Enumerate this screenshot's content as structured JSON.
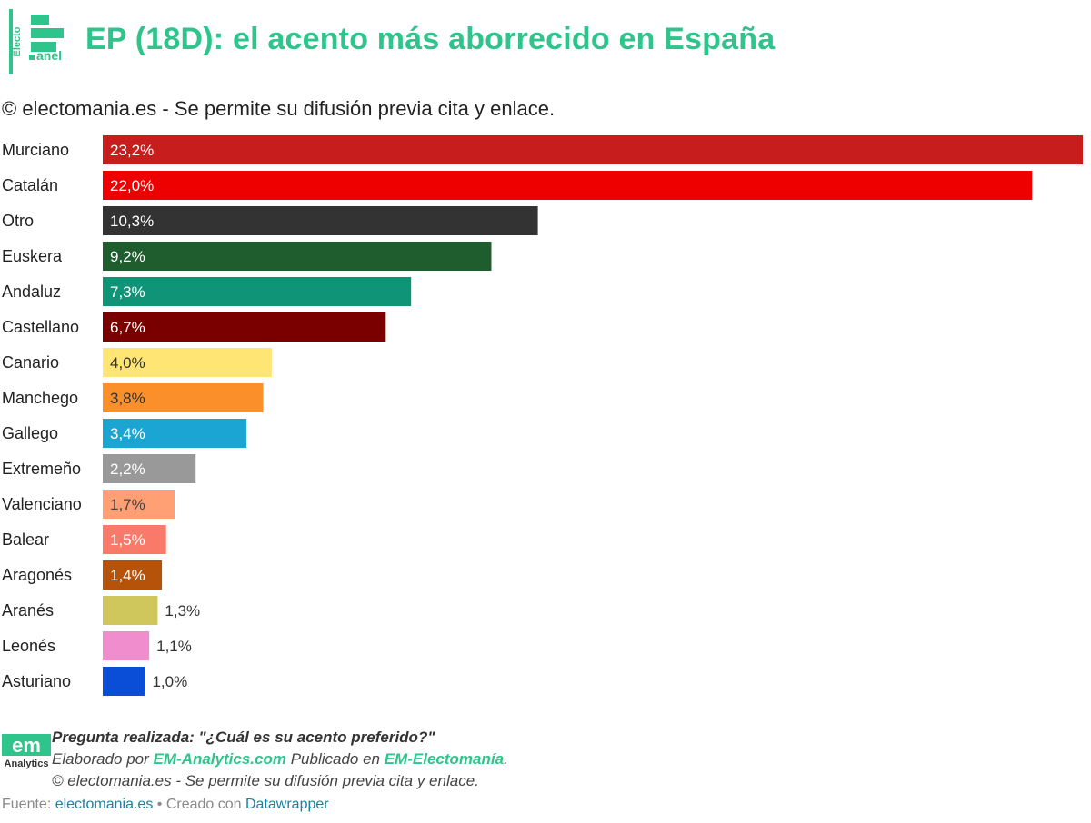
{
  "header": {
    "logo_text_top": "Electo",
    "logo_text_bottom": "anel",
    "title": "EP (18D): el acento más aborrecido en España"
  },
  "subtitle": "© electomania.es - Se permite su difusión previa cita y enlace.",
  "chart_data": {
    "type": "bar",
    "orientation": "horizontal",
    "title": "EP (18D): el acento más aborrecido en España",
    "xlim": [
      0,
      23.2
    ],
    "grid": false,
    "legend": "none",
    "categories": [
      "Murciano",
      "Catalán",
      "Otro",
      "Euskera",
      "Andaluz",
      "Castellano",
      "Canario",
      "Manchego",
      "Gallego",
      "Extremeño",
      "Valenciano",
      "Balear",
      "Aragonés",
      "Aranés",
      "Leonés",
      "Asturiano"
    ],
    "values": [
      23.2,
      22.0,
      10.3,
      9.2,
      7.3,
      6.7,
      4.0,
      3.8,
      3.4,
      2.2,
      1.7,
      1.5,
      1.4,
      1.3,
      1.1,
      1.0
    ],
    "value_labels": [
      "23,2%",
      "22,0%",
      "10,3%",
      "9,2%",
      "7,3%",
      "6,7%",
      "4,0%",
      "3,8%",
      "3,4%",
      "2,2%",
      "1,7%",
      "1,5%",
      "1,4%",
      "1,3%",
      "1,1%",
      "1,0%"
    ],
    "colors": [
      "#c71e1d",
      "#ee0000",
      "#333333",
      "#1f5c2e",
      "#0f9478",
      "#7a0000",
      "#ffe574",
      "#fb8f2a",
      "#1aa5d2",
      "#999999",
      "#ff9f73",
      "#fa7a6a",
      "#b45309",
      "#cfc75b",
      "#f08dcc",
      "#0a4dd6"
    ],
    "label_colors": [
      "#ffffff",
      "#ffffff",
      "#ffffff",
      "#ffffff",
      "#ffffff",
      "#ffffff",
      "#333333",
      "#333333",
      "#ffffff",
      "#ffffff",
      "#444444",
      "#ffffff",
      "#ffffff",
      "#444444",
      "#333333",
      "#333333"
    ]
  },
  "footer": {
    "logo_text": "em",
    "logo_subtext": "Analytics",
    "question": "Pregunta realizada: \"¿Cuál es su acento preferido?\"",
    "elaborado_prefix": "Elaborado por ",
    "elaborado_link": "EM-Analytics.com",
    "publicado_prefix": " Publicado en ",
    "publicado_link": "EM-Electomanía",
    "publicado_suffix": ".",
    "copyright": "© electomania.es - Se permite su difusión previa cita y enlace.",
    "source_prefix": "Fuente: ",
    "source_link": "electomania.es",
    "created_prefix": " • Creado con ",
    "created_link": "Datawrapper"
  }
}
